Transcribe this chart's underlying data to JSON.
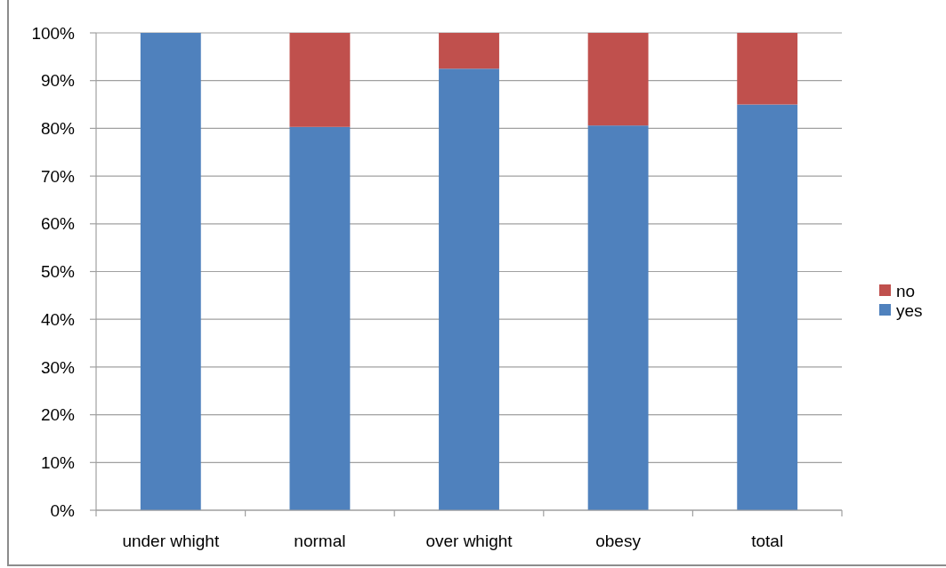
{
  "chart_data": {
    "type": "bar",
    "categories": [
      "under whight",
      "normal",
      "over whight",
      "obesy",
      "total"
    ],
    "series": [
      {
        "name": "yes",
        "color": "#4f81bd",
        "values": [
          100,
          80.3,
          92.5,
          80.6,
          85
        ]
      },
      {
        "name": "no",
        "color": "#c0504d",
        "values": [
          0,
          19.7,
          7.5,
          19.4,
          15
        ]
      }
    ],
    "stacked": true,
    "ylim": [
      0,
      100
    ],
    "yticks": [
      {
        "value": 0,
        "label": "0%"
      },
      {
        "value": 10,
        "label": "10%"
      },
      {
        "value": 20,
        "label": "20%"
      },
      {
        "value": 30,
        "label": "30%"
      },
      {
        "value": 40,
        "label": "40%"
      },
      {
        "value": 50,
        "label": "50%"
      },
      {
        "value": 60,
        "label": "60%"
      },
      {
        "value": 70,
        "label": "70%"
      },
      {
        "value": 80,
        "label": "80%"
      },
      {
        "value": 90,
        "label": "90%"
      },
      {
        "value": 100,
        "label": "100%"
      }
    ],
    "grid": "y",
    "legend": "right"
  }
}
